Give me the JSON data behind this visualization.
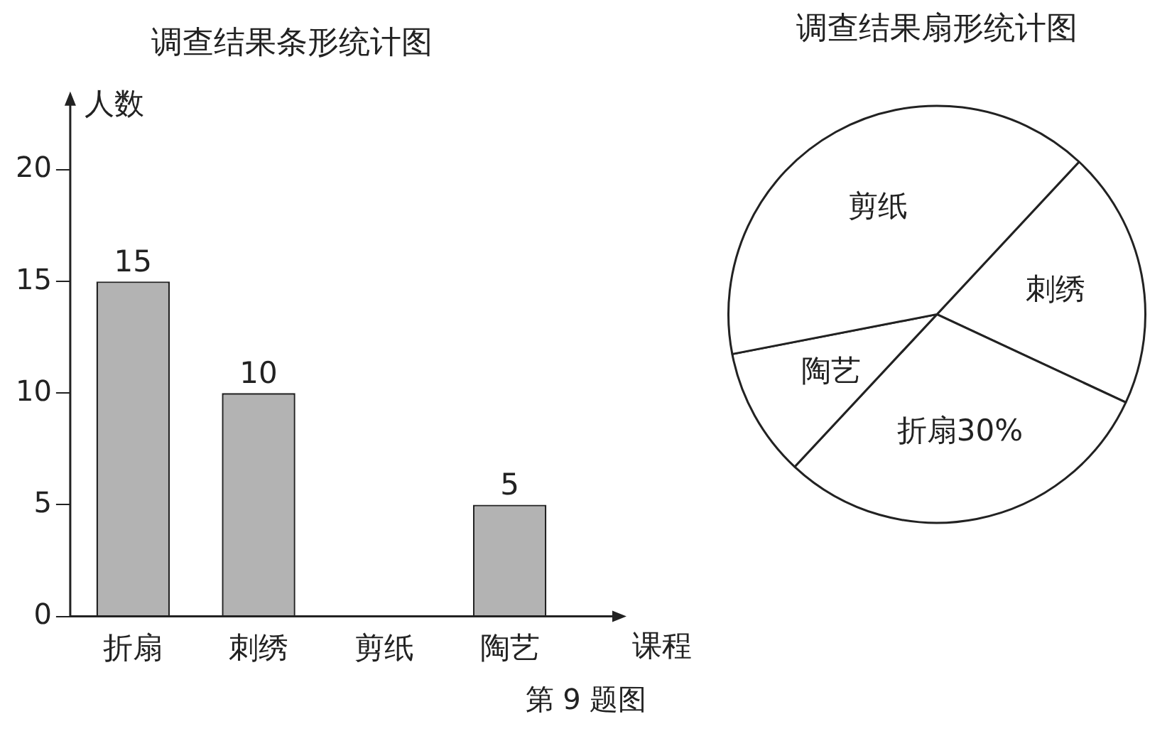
{
  "chart_data": [
    {
      "type": "bar",
      "title": "调查结果条形统计图",
      "xlabel": "课程",
      "ylabel": "人数",
      "categories": [
        "折扇",
        "刺绣",
        "剪纸",
        "陶艺"
      ],
      "values": [
        15,
        10,
        null,
        5
      ],
      "color": "#b3b3b3",
      "ylim": [
        0,
        23
      ],
      "yticks": [
        0,
        5,
        10,
        15,
        20
      ],
      "grid": false,
      "legend": false,
      "data_labels": true,
      "annotations": [
        "第 9 题图"
      ]
    },
    {
      "type": "pie",
      "title": "调查结果扇形统计图",
      "categories": [
        "刺绣",
        "折扇",
        "陶艺",
        "剪纸"
      ],
      "values": [
        20,
        30,
        10,
        40
      ],
      "value_labels": [
        null,
        "30%",
        null,
        null
      ],
      "colors": [
        "#ffffff",
        "#ffffff",
        "#ffffff",
        "#ffffff"
      ],
      "legend": false
    }
  ]
}
